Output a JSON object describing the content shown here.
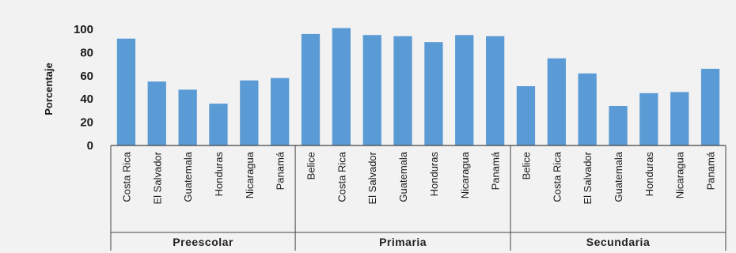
{
  "chart_data": {
    "type": "bar",
    "title": "",
    "xlabel": "",
    "ylabel": "Porcentaje",
    "ylim": [
      0,
      100
    ],
    "yticks": [
      0,
      20,
      40,
      60,
      80,
      100
    ],
    "grid": false,
    "bar_color": "#5b9bd5",
    "groups": [
      {
        "name": "Preescolar",
        "categories": [
          "Costa Rica",
          "El Salvador",
          "Guatemala",
          "Honduras",
          "Nicaragua",
          "Panamá"
        ],
        "values": [
          92,
          55,
          48,
          36,
          56,
          58
        ]
      },
      {
        "name": "Primaria",
        "categories": [
          "Belice",
          "Costa Rica",
          "El Salvador",
          "Guatemala",
          "Honduras",
          "Nicaragua",
          "Panamá"
        ],
        "values": [
          96,
          101,
          95,
          94,
          89,
          95,
          94
        ]
      },
      {
        "name": "Secundaria",
        "categories": [
          "Belice",
          "Costa Rica",
          "El Salvador",
          "Guatemala",
          "Honduras",
          "Nicaragua",
          "Panamá"
        ],
        "values": [
          51,
          75,
          62,
          34,
          45,
          46,
          66
        ]
      }
    ]
  }
}
